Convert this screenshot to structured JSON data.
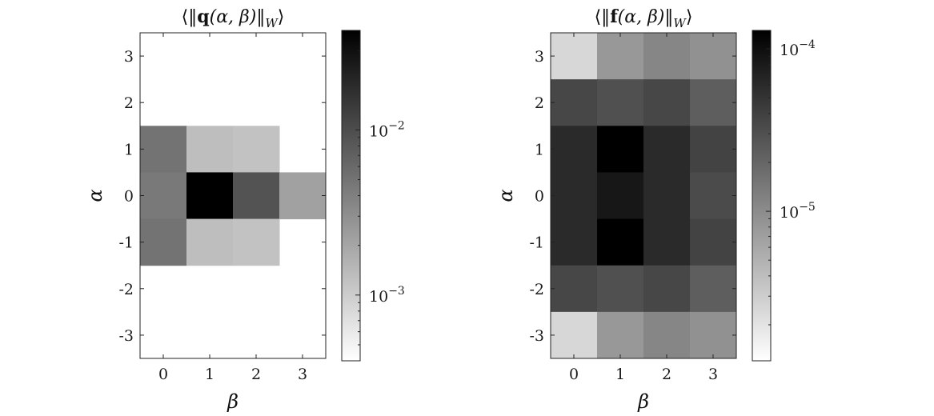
{
  "chart_data": [
    {
      "type": "heatmap",
      "title": "⟨‖q(α, β)‖W⟩",
      "title_parts": {
        "open": "⟨‖",
        "bold": "q",
        "args": "(α, β)‖",
        "sub": "W",
        "close": "⟩"
      },
      "xlabel": "β",
      "ylabel": "α",
      "x": [
        0,
        1,
        2,
        3
      ],
      "y": [
        3,
        2,
        1,
        0,
        -1,
        -2,
        -3
      ],
      "xtick_labels": [
        "0",
        "1",
        "2",
        "3"
      ],
      "ytick_labels": [
        "3",
        "2",
        "1",
        "0",
        "-1",
        "-2",
        "-3"
      ],
      "colorscale": "gray-reversed",
      "log_scale": true,
      "clim": [
        0.0004,
        0.04
      ],
      "colorbar_ticks": [
        {
          "value": 0.01,
          "label": "10",
          "exp": "−2"
        },
        {
          "value": 0.001,
          "label": "10",
          "exp": "−3"
        }
      ],
      "values": [
        [
          null,
          null,
          null,
          null
        ],
        [
          null,
          null,
          null,
          null
        ],
        [
          0.005,
          0.0013,
          0.0012,
          null
        ],
        [
          0.0045,
          0.04,
          0.009,
          0.0022
        ],
        [
          0.005,
          0.0013,
          0.0012,
          null
        ],
        [
          null,
          null,
          null,
          null
        ],
        [
          null,
          null,
          null,
          null
        ]
      ]
    },
    {
      "type": "heatmap",
      "title": "⟨‖f(α, β)‖W⟩",
      "title_parts": {
        "open": "⟨‖",
        "bold": "f",
        "args": "(α, β)‖",
        "sub": "W",
        "close": "⟩"
      },
      "xlabel": "β",
      "ylabel": "α",
      "x": [
        0,
        1,
        2,
        3
      ],
      "y": [
        3,
        2,
        1,
        0,
        -1,
        -2,
        -3
      ],
      "xtick_labels": [
        "0",
        "1",
        "2",
        "3"
      ],
      "ytick_labels": [
        "3",
        "2",
        "1",
        "0",
        "-1",
        "-2",
        "-3"
      ],
      "colorscale": "gray-reversed",
      "log_scale": true,
      "clim": [
        1.2e-06,
        0.00013
      ],
      "colorbar_ticks": [
        {
          "value": 0.0001,
          "label": "10",
          "exp": "−4"
        },
        {
          "value": 1e-05,
          "label": "10",
          "exp": "−5"
        }
      ],
      "values": [
        [
          2.5e-06,
          8e-06,
          1.1e-05,
          9e-06
        ],
        [
          3.5e-05,
          3e-05,
          3.5e-05,
          2.3e-05
        ],
        [
          6e-05,
          0.00013,
          6e-05,
          3.8e-05
        ],
        [
          6e-05,
          8.5e-05,
          6e-05,
          3.3e-05
        ],
        [
          6e-05,
          0.00013,
          6e-05,
          3.8e-05
        ],
        [
          3.5e-05,
          3e-05,
          3.5e-05,
          2.3e-05
        ],
        [
          2.5e-06,
          8e-06,
          1.1e-05,
          9e-06
        ]
      ]
    }
  ]
}
